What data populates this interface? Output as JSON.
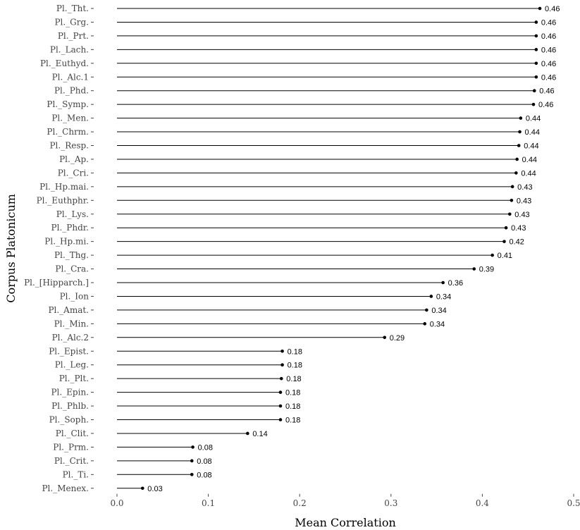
{
  "chart_data": {
    "type": "lollipop",
    "xlabel": "Mean Correlation",
    "ylabel": "Corpus Platonicum",
    "xlim": [
      0,
      0.5
    ],
    "x_ticks": [
      "0.0",
      "0.1",
      "0.2",
      "0.3",
      "0.4",
      "0.5"
    ],
    "grid": false,
    "colors": {
      "stem": "#000000",
      "point": "#000000",
      "text": "#444444"
    },
    "categories": [
      "Pl._Tht.",
      "Pl._Grg.",
      "Pl._Prt.",
      "Pl._Lach.",
      "Pl._Euthyd.",
      "Pl._Alc.1",
      "Pl._Phd.",
      "Pl._Symp.",
      "Pl._Men.",
      "Pl._Chrm.",
      "Pl._Resp.",
      "Pl._Ap.",
      "Pl._Cri.",
      "Pl._Hp.mai.",
      "Pl._Euthphr.",
      "Pl._Lys.",
      "Pl._Phdr.",
      "Pl._Hp.mi.",
      "Pl._Thg.",
      "Pl._Cra.",
      "Pl._[Hipparch.]",
      "Pl._Ion",
      "Pl._Amat.",
      "Pl._Min.",
      "Pl._Alc.2",
      "Pl._Epist.",
      "Pl._Leg.",
      "Pl._Plt.",
      "Pl._Epin.",
      "Pl._Phlb.",
      "Pl._Soph.",
      "Pl._Clit.",
      "Pl._Prm.",
      "Pl._Crit.",
      "Pl._Ti.",
      "Pl._Menex."
    ],
    "values": [
      0.463,
      0.459,
      0.459,
      0.459,
      0.459,
      0.459,
      0.457,
      0.456,
      0.442,
      0.441,
      0.44,
      0.438,
      0.437,
      0.433,
      0.432,
      0.43,
      0.426,
      0.424,
      0.411,
      0.391,
      0.357,
      0.344,
      0.339,
      0.337,
      0.293,
      0.181,
      0.181,
      0.18,
      0.179,
      0.179,
      0.179,
      0.143,
      0.083,
      0.082,
      0.082,
      0.028
    ],
    "value_labels": [
      "0.46",
      "0.46",
      "0.46",
      "0.46",
      "0.46",
      "0.46",
      "0.46",
      "0.46",
      "0.44",
      "0.44",
      "0.44",
      "0.44",
      "0.44",
      "0.43",
      "0.43",
      "0.43",
      "0.43",
      "0.42",
      "0.41",
      "0.39",
      "0.36",
      "0.34",
      "0.34",
      "0.34",
      "0.29",
      "0.18",
      "0.18",
      "0.18",
      "0.18",
      "0.18",
      "0.18",
      "0.14",
      "0.08",
      "0.08",
      "0.08",
      "0.03"
    ]
  }
}
